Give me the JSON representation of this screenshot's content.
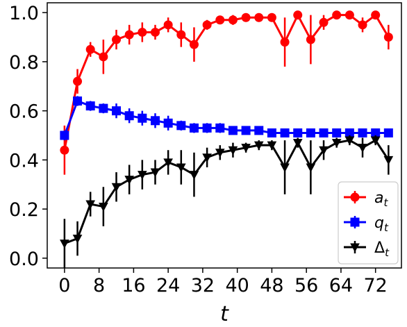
{
  "chart_data": {
    "type": "line",
    "xlabel": "t",
    "ylabel": "",
    "xlim": [
      -4,
      78
    ],
    "ylim": [
      -0.04,
      1.04
    ],
    "xticks": [
      0,
      8,
      16,
      24,
      32,
      40,
      48,
      56,
      64,
      72
    ],
    "yticks": [
      0.0,
      0.2,
      0.4,
      0.6,
      0.8,
      1.0
    ],
    "grid": false,
    "legend_position": "bottom-right",
    "x": [
      0,
      3,
      6,
      9,
      12,
      15,
      18,
      21,
      24,
      27,
      30,
      33,
      36,
      39,
      42,
      45,
      48,
      51,
      54,
      57,
      60,
      63,
      66,
      69,
      72,
      75
    ],
    "series": [
      {
        "name": "a",
        "name_sub": "t",
        "color": "#ff0000",
        "marker": "circle",
        "values": [
          0.44,
          0.72,
          0.85,
          0.82,
          0.89,
          0.91,
          0.92,
          0.92,
          0.95,
          0.91,
          0.87,
          0.95,
          0.97,
          0.97,
          0.98,
          0.98,
          0.98,
          0.88,
          0.99,
          0.89,
          0.96,
          0.99,
          0.99,
          0.95,
          0.99,
          0.9
        ],
        "err": [
          0.1,
          0.05,
          0.03,
          0.07,
          0.04,
          0.04,
          0.04,
          0.03,
          0.03,
          0.05,
          0.07,
          0.02,
          0.01,
          0.02,
          0.01,
          0.01,
          0.01,
          0.1,
          0.01,
          0.1,
          0.03,
          0.01,
          0.01,
          0.03,
          0.01,
          0.05
        ]
      },
      {
        "name": "q",
        "name_sub": "t",
        "color": "#0000ff",
        "marker": "square",
        "values": [
          0.5,
          0.64,
          0.62,
          0.61,
          0.6,
          0.58,
          0.57,
          0.56,
          0.55,
          0.54,
          0.53,
          0.53,
          0.53,
          0.52,
          0.52,
          0.52,
          0.51,
          0.51,
          0.51,
          0.51,
          0.51,
          0.51,
          0.51,
          0.51,
          0.51,
          0.51
        ],
        "err": [
          0.02,
          0.02,
          0.02,
          0.02,
          0.03,
          0.03,
          0.03,
          0.03,
          0.03,
          0.02,
          0.02,
          0.02,
          0.02,
          0.01,
          0.01,
          0.01,
          0.01,
          0.01,
          0.01,
          0.01,
          0.01,
          0.01,
          0.01,
          0.01,
          0.01,
          0.01
        ]
      },
      {
        "name": "Δ",
        "name_sub": "t",
        "color": "#000000",
        "marker": "triangle-down",
        "values": [
          0.06,
          0.08,
          0.22,
          0.21,
          0.29,
          0.32,
          0.34,
          0.35,
          0.39,
          0.37,
          0.34,
          0.41,
          0.43,
          0.44,
          0.45,
          0.46,
          0.46,
          0.37,
          0.47,
          0.37,
          0.44,
          0.47,
          0.48,
          0.45,
          0.48,
          0.4
        ],
        "err": [
          0.1,
          0.07,
          0.05,
          0.08,
          0.06,
          0.06,
          0.06,
          0.05,
          0.05,
          0.07,
          0.09,
          0.04,
          0.03,
          0.03,
          0.02,
          0.02,
          0.02,
          0.11,
          0.02,
          0.11,
          0.04,
          0.02,
          0.02,
          0.04,
          0.02,
          0.06
        ]
      }
    ]
  }
}
